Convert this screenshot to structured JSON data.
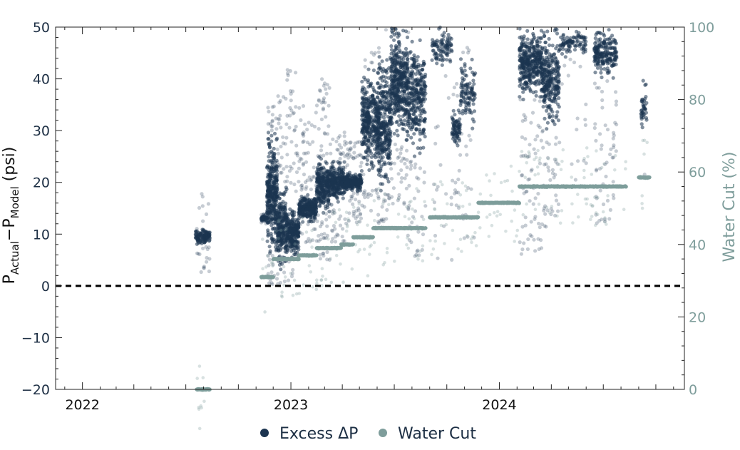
{
  "chart_data": {
    "type": "scatter",
    "colors": {
      "excess": "#1c3450",
      "water_cut": "#7e9d9b",
      "zero_line": "#000000",
      "axis": "#222222"
    },
    "x_axis": {
      "range": [
        "2021-11-15",
        "2024-11-20"
      ],
      "ticks": [
        "2022",
        "2023",
        "2024"
      ]
    },
    "y_left": {
      "label_parts": [
        "P",
        "Actual",
        "−P",
        "Model",
        " (psi)"
      ],
      "range": [
        -20,
        50
      ],
      "ticks": [
        "−20",
        "−10",
        "0",
        "10",
        "20",
        "30",
        "40",
        "50"
      ]
    },
    "y_right": {
      "label": "Water Cut (%)",
      "range": [
        0,
        100
      ],
      "ticks": [
        "0",
        "20",
        "40",
        "60",
        "80",
        "100"
      ]
    },
    "zero_line": {
      "y": 0,
      "style": "dashed"
    },
    "legend": {
      "placement": "bottom-center",
      "items": [
        "Excess ΔP",
        "Water Cut"
      ]
    },
    "grid": false,
    "series": [
      {
        "name": "Excess ΔP",
        "axis": "left",
        "clusters": [
          {
            "start": "2022-07-18",
            "end": "2022-08-12",
            "base": [
              8,
              11
            ],
            "lo": 2,
            "hi": 18,
            "n": 140
          },
          {
            "start": "2022-11-10",
            "end": "2022-11-20",
            "base": [
              12.5,
              13.5
            ],
            "lo": 12,
            "hi": 14,
            "n": 60
          },
          {
            "start": "2022-11-20",
            "end": "2022-12-08",
            "base": [
              6,
              30
            ],
            "lo": 0,
            "hi": 35,
            "n": 380
          },
          {
            "start": "2022-12-08",
            "end": "2022-12-25",
            "base": [
              3,
              20
            ],
            "lo": 0,
            "hi": 37,
            "n": 260
          },
          {
            "start": "2022-12-25",
            "end": "2023-01-15",
            "base": [
              5,
              15
            ],
            "lo": 0,
            "hi": 42,
            "n": 280
          },
          {
            "start": "2023-01-15",
            "end": "2023-02-15",
            "base": [
              12,
              18
            ],
            "lo": 8,
            "hi": 35,
            "n": 340
          },
          {
            "start": "2023-02-15",
            "end": "2023-03-10",
            "base": [
              14,
              25
            ],
            "lo": 5,
            "hi": 40,
            "n": 320
          },
          {
            "start": "2023-03-10",
            "end": "2023-04-05",
            "base": [
              16,
              24
            ],
            "lo": 8,
            "hi": 30,
            "n": 300
          },
          {
            "start": "2023-04-05",
            "end": "2023-05-05",
            "base": [
              18,
              22
            ],
            "lo": 12,
            "hi": 28,
            "n": 280
          },
          {
            "start": "2023-05-05",
            "end": "2023-06-01",
            "base": [
              22,
              42
            ],
            "lo": 14,
            "hi": 46,
            "n": 340
          },
          {
            "start": "2023-06-01",
            "end": "2023-06-25",
            "base": [
              18,
              45
            ],
            "lo": 12,
            "hi": 50,
            "n": 360
          },
          {
            "start": "2023-06-25",
            "end": "2023-07-25",
            "base": [
              28,
              50
            ],
            "lo": 15,
            "hi": 50,
            "n": 440
          },
          {
            "start": "2023-07-25",
            "end": "2023-08-25",
            "base": [
              25,
              48
            ],
            "lo": 5,
            "hi": 50,
            "n": 320
          },
          {
            "start": "2023-09-05",
            "end": "2023-10-10",
            "base": [
              42,
              50
            ],
            "lo": 5,
            "hi": 50,
            "n": 110
          },
          {
            "start": "2023-10-10",
            "end": "2023-10-25",
            "base": [
              26,
              35
            ],
            "lo": 15,
            "hi": 40,
            "n": 90
          },
          {
            "start": "2023-10-25",
            "end": "2023-11-20",
            "base": [
              30,
              45
            ],
            "lo": 8,
            "hi": 50,
            "n": 120
          },
          {
            "start": "2024-02-05",
            "end": "2024-03-15",
            "base": [
              36,
              50
            ],
            "lo": 6,
            "hi": 50,
            "n": 420
          },
          {
            "start": "2024-03-15",
            "end": "2024-04-15",
            "base": [
              30,
              50
            ],
            "lo": 10,
            "hi": 50,
            "n": 320
          },
          {
            "start": "2024-04-15",
            "end": "2024-06-01",
            "base": [
              44,
              50
            ],
            "lo": 20,
            "hi": 50,
            "n": 110
          },
          {
            "start": "2024-06-15",
            "end": "2024-07-25",
            "base": [
              40,
              50
            ],
            "lo": 12,
            "hi": 50,
            "n": 260
          },
          {
            "start": "2024-09-05",
            "end": "2024-09-15",
            "base": [
              30,
              40
            ],
            "lo": 12,
            "hi": 50,
            "n": 40
          }
        ]
      },
      {
        "name": "Water Cut",
        "axis": "right",
        "steps": [
          {
            "start": "2022-07-20",
            "end": "2022-08-12",
            "value": 0
          },
          {
            "start": "2022-11-10",
            "end": "2022-12-01",
            "value": 31
          },
          {
            "start": "2022-12-01",
            "end": "2023-01-15",
            "value": 36
          },
          {
            "start": "2023-01-15",
            "end": "2023-02-15",
            "value": 37
          },
          {
            "start": "2023-02-15",
            "end": "2023-03-30",
            "value": 39
          },
          {
            "start": "2023-03-30",
            "end": "2023-04-20",
            "value": 40
          },
          {
            "start": "2023-04-20",
            "end": "2023-05-25",
            "value": 42
          },
          {
            "start": "2023-05-25",
            "end": "2023-08-25",
            "value": 44.5
          },
          {
            "start": "2023-09-01",
            "end": "2023-11-25",
            "value": 47.5
          },
          {
            "start": "2023-11-25",
            "end": "2024-02-05",
            "value": 51.5
          },
          {
            "start": "2024-02-05",
            "end": "2024-08-10",
            "value": 56
          },
          {
            "start": "2024-09-01",
            "end": "2024-09-20",
            "value": 58.5
          }
        ]
      }
    ]
  }
}
